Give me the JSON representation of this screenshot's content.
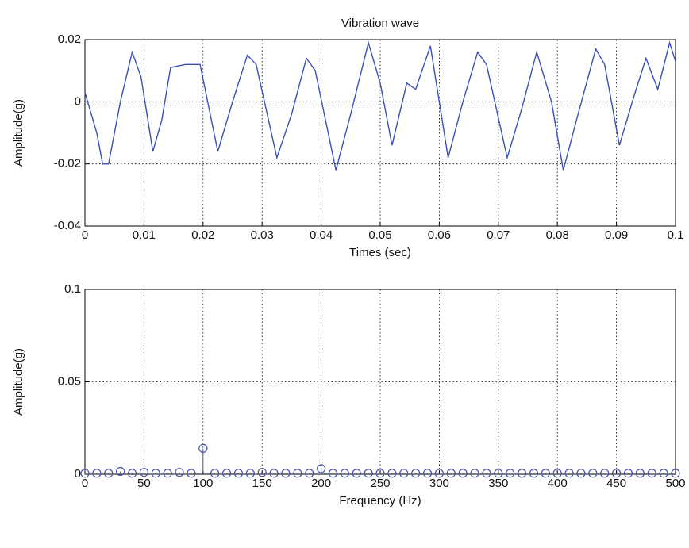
{
  "chart_data": [
    {
      "type": "line",
      "title": "Vibration wave",
      "x_label": "Times (sec)",
      "y_label": "Amplitude(g)",
      "xlim": [
        0,
        0.1
      ],
      "xticks": [
        0,
        0.01,
        0.02,
        0.03,
        0.04,
        0.05,
        0.06,
        0.07,
        0.08,
        0.09,
        0.1
      ],
      "ylim": [
        -0.04,
        0.02
      ],
      "yticks": [
        -0.04,
        -0.02,
        0,
        0.02
      ],
      "grid": true,
      "color": "#3a4fb8",
      "x": [
        0,
        0.002,
        0.003,
        0.004,
        0.006,
        0.008,
        0.0095,
        0.0115,
        0.013,
        0.0145,
        0.017,
        0.0195,
        0.0225,
        0.025,
        0.0275,
        0.029,
        0.0325,
        0.035,
        0.0375,
        0.039,
        0.0425,
        0.045,
        0.048,
        0.05,
        0.052,
        0.0545,
        0.056,
        0.0585,
        0.0615,
        0.064,
        0.0665,
        0.068,
        0.0715,
        0.074,
        0.0765,
        0.079,
        0.081,
        0.0835,
        0.0865,
        0.088,
        0.0905,
        0.093,
        0.095,
        0.097,
        0.099,
        0.1
      ],
      "values": [
        0.003,
        -0.01,
        -0.02,
        -0.02,
        0.0,
        0.016,
        0.008,
        -0.016,
        -0.006,
        0.011,
        0.012,
        0.012,
        -0.016,
        0.0,
        0.015,
        0.012,
        -0.018,
        -0.004,
        0.014,
        0.01,
        -0.022,
        -0.004,
        0.019,
        0.006,
        -0.014,
        0.006,
        0.004,
        0.018,
        -0.018,
        0.0,
        0.016,
        0.012,
        -0.018,
        -0.002,
        0.016,
        0.0,
        -0.022,
        -0.004,
        0.017,
        0.012,
        -0.014,
        0.002,
        0.014,
        0.004,
        0.019,
        0.013
      ]
    },
    {
      "type": "stem",
      "x_label": "Frequency (Hz)",
      "y_label": "Amplitude(g)",
      "xlim": [
        0,
        500
      ],
      "xticks": [
        0,
        50,
        100,
        150,
        200,
        250,
        300,
        350,
        400,
        450,
        500
      ],
      "ylim": [
        0,
        0.1
      ],
      "yticks": [
        0,
        0.05,
        0.1
      ],
      "grid": true,
      "color": "#4a55a8",
      "x": [
        0,
        10,
        20,
        30,
        40,
        50,
        60,
        70,
        80,
        90,
        100,
        110,
        120,
        130,
        140,
        150,
        160,
        170,
        180,
        190,
        200,
        210,
        220,
        230,
        240,
        250,
        260,
        270,
        280,
        290,
        300,
        310,
        320,
        330,
        340,
        350,
        360,
        370,
        380,
        390,
        400,
        410,
        420,
        430,
        440,
        450,
        460,
        470,
        480,
        490,
        500
      ],
      "values": [
        0.0005,
        0.0005,
        0.0005,
        0.0015,
        0.0005,
        0.001,
        0.0005,
        0.0005,
        0.001,
        0.0005,
        0.014,
        0.0005,
        0.0005,
        0.0005,
        0.0005,
        0.001,
        0.0005,
        0.0005,
        0.0005,
        0.0005,
        0.003,
        0.0005,
        0.0005,
        0.0005,
        0.0005,
        0.0005,
        0.0005,
        0.0005,
        0.0005,
        0.0005,
        0.0005,
        0.0005,
        0.0005,
        0.0005,
        0.0005,
        0.0005,
        0.0005,
        0.0005,
        0.0005,
        0.0005,
        0.0005,
        0.0005,
        0.0005,
        0.0005,
        0.0005,
        0.0005,
        0.0005,
        0.0005,
        0.0005,
        0.0005,
        0.0005
      ]
    }
  ]
}
